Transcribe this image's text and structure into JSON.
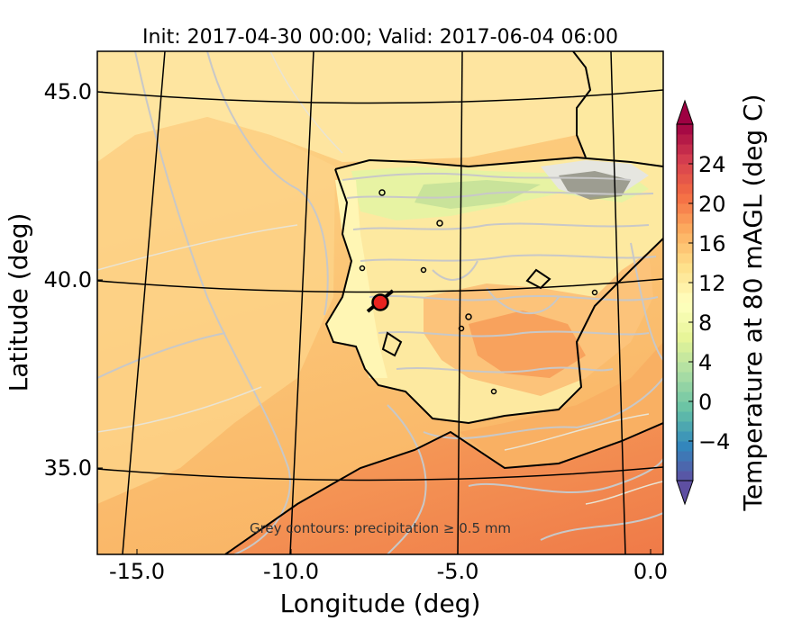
{
  "title": "Init: 2017-04-30 00:00; Valid: 2017-06-04 06:00",
  "map": {
    "xlabel": "Longitude (deg)",
    "ylabel": "Latitude (deg)",
    "x_ticks": [
      "-15.0",
      "-10.0",
      "-5.0",
      "0.0"
    ],
    "y_ticks": [
      "45.0",
      "40.0",
      "35.0"
    ],
    "extent": {
      "lon": [
        -16,
        0.3
      ],
      "lat": [
        32.7,
        46.1
      ]
    },
    "annotation": "Grey contours: precipitation ≥ 0.5 mm",
    "marker": {
      "lon": -7.5,
      "lat": 39.3,
      "color": "#e8231f"
    }
  },
  "colorbar": {
    "label": "Temperature at 80 mAGL (deg C)",
    "ticks": [
      "24",
      "20",
      "16",
      "12",
      "8",
      "4",
      "0",
      "−4"
    ],
    "tick_values": [
      24,
      20,
      16,
      12,
      8,
      4,
      0,
      -4
    ],
    "range": [
      -8,
      28
    ],
    "colormap": "Spectral_r"
  },
  "colors": {
    "ocean_base": "#fcc879",
    "land_base": "#fde9a0",
    "contour_grey": "#c8c8c8",
    "coast": "#000000"
  }
}
